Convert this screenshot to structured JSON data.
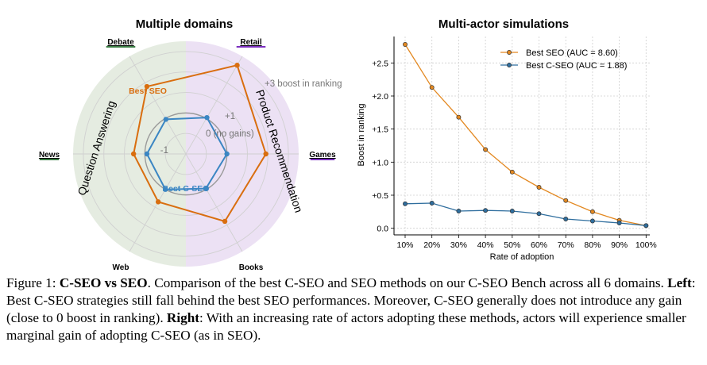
{
  "chart_data": [
    {
      "type": "radar",
      "title": "Multiple domains",
      "axes": [
        "Retail",
        "Games",
        "Books",
        "Web",
        "News",
        "Debate"
      ],
      "axis_colors": [
        "#7b2fbf",
        "#7b2fbf",
        "#7b2fbf",
        "#3a7d44",
        "#3a7d44",
        "#3a7d44"
      ],
      "rlim": [
        -2,
        3.5
      ],
      "ring_labels": [
        "-1",
        "0 (no gains)",
        "+1",
        "+3 boost in ranking"
      ],
      "regions": [
        {
          "label": "Question Answering",
          "color": "#e5ece1"
        },
        {
          "label": "Product Recommendation",
          "color": "#ece1f4"
        }
      ],
      "series": [
        {
          "name": "Best SEO",
          "color": "#d96e0f",
          "values": [
            3.0,
            1.9,
            1.8,
            0.7,
            0.55,
            1.8
          ]
        },
        {
          "name": "Best C-SEO",
          "color": "#3b86c3",
          "values": [
            0.05,
            0.0,
            -0.05,
            0.0,
            -0.1,
            -0.05
          ]
        }
      ]
    },
    {
      "type": "line",
      "title": "Multi-actor simulations",
      "xlabel": "Rate of adoption",
      "ylabel": "Boost in ranking",
      "categories": [
        "10%",
        "20%",
        "30%",
        "40%",
        "50%",
        "60%",
        "70%",
        "80%",
        "90%",
        "100%"
      ],
      "yticks": [
        "0.0",
        "+0.5",
        "+1.0",
        "+1.5",
        "+2.0",
        "+2.5"
      ],
      "ylim": [
        -0.1,
        2.9
      ],
      "grid": true,
      "legend": "top-right",
      "series": [
        {
          "name": "Best SEO (AUC = 8.60)",
          "color": "#e38820",
          "values": [
            2.78,
            2.13,
            1.68,
            1.19,
            0.85,
            0.62,
            0.42,
            0.25,
            0.12,
            0.04
          ]
        },
        {
          "name": "Best C-SEO (AUC = 1.88)",
          "color": "#2f6e9e",
          "values": [
            0.37,
            0.38,
            0.26,
            0.27,
            0.26,
            0.22,
            0.14,
            0.11,
            0.08,
            0.04
          ]
        }
      ]
    }
  ],
  "caption": {
    "prefix": "Figure 1: ",
    "bold_title": "C-SEO vs SEO",
    "p1": ". Comparison of the best C-SEO and SEO methods on our C-SEO Bench across all 6 domains. ",
    "left_label": "Left",
    "p2": ": Best C-SEO strategies still fall behind the best SEO performances. Moreover, C-SEO generally does not introduce any gain (close to 0 boost in ranking). ",
    "right_label": "Right",
    "p3": ": With an increasing rate of actors adopting these methods, actors will experience smaller marginal gain of adopting C-SEO (as in SEO)."
  }
}
